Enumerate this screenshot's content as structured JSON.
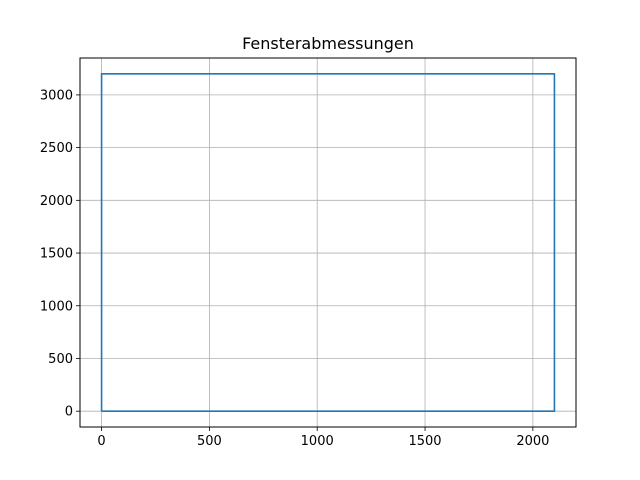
{
  "chart_data": {
    "type": "line",
    "title": "Fensterabmessungen",
    "xlabel": "",
    "ylabel": "",
    "xlim": [
      -100,
      2200
    ],
    "ylim": [
      -150,
      3350
    ],
    "grid": true,
    "x_ticks": [
      0,
      500,
      1000,
      1500,
      2000
    ],
    "y_ticks": [
      0,
      500,
      1000,
      1500,
      2000,
      2500,
      3000
    ],
    "series": [
      {
        "color": "#1f77b4",
        "points": [
          [
            0,
            0
          ],
          [
            2100,
            0
          ],
          [
            2100,
            3200
          ],
          [
            0,
            3200
          ],
          [
            0,
            0
          ]
        ]
      }
    ]
  }
}
